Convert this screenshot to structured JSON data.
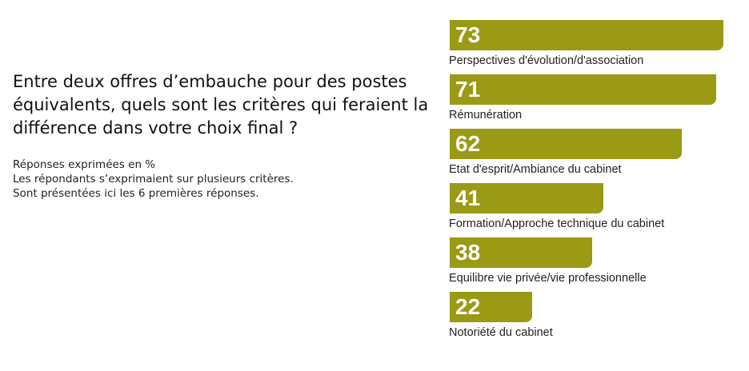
{
  "chart_data": {
    "type": "bar",
    "orientation": "horizontal",
    "title": "Entre deux offres d’embauche pour des postes équivalents, quels sont les critères qui feraient la différence dans votre choix final ?",
    "notes": [
      "Réponses exprimées en %",
      "Les répondants s’exprimaient sur plusieurs critères.",
      "Sont présentées ici les 6 premières réponses."
    ],
    "categories": [
      "Perspectives d'évolution/d'association",
      "Rémunération",
      "Etat d'esprit/Ambiance du cabinet",
      "Formation/Approche technique du cabinet",
      "Equilibre vie privée/vie professionnelle",
      "Notoriété du cabinet"
    ],
    "values": [
      73,
      71,
      62,
      41,
      38,
      22
    ],
    "value_labels": [
      "73",
      "71",
      "62",
      "41",
      "38",
      "22"
    ],
    "unit": "%",
    "xlim": [
      0,
      73
    ],
    "grid": false,
    "bar_color": "#9a9a14"
  }
}
